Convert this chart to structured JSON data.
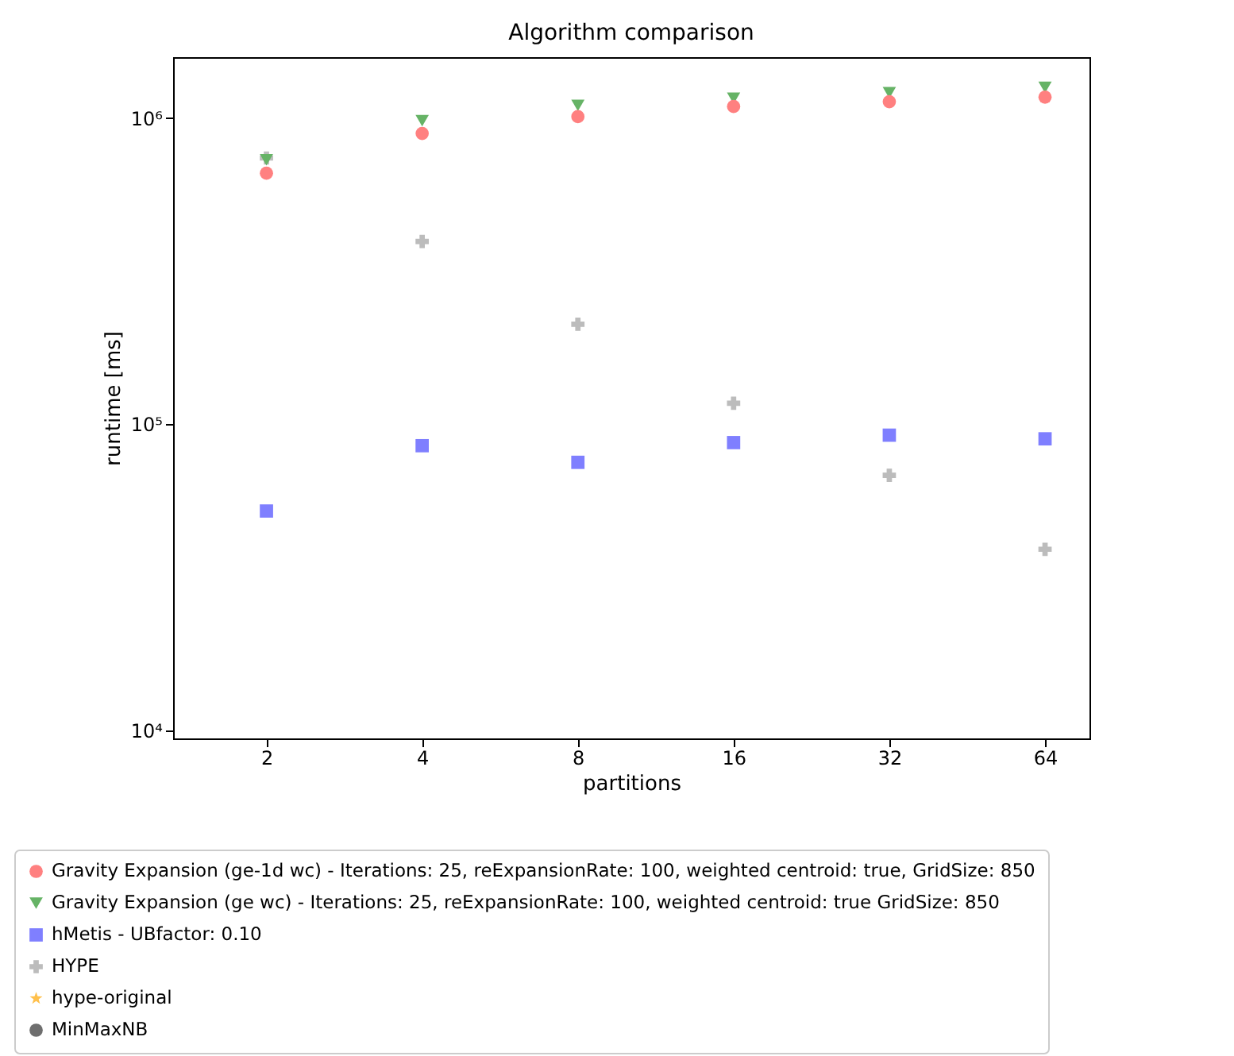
{
  "chart_data": {
    "type": "scatter",
    "title": "Algorithm comparison",
    "xlabel": "partitions",
    "ylabel": "runtime [ms]",
    "x": [
      2,
      4,
      8,
      16,
      32,
      64
    ],
    "series": [
      {
        "name": "Gravity Expansion (ge-1d wc) - Iterations: 25, reExpansionRate: 100, weighted centroid: true, GridSize: 850",
        "color": "#ff8080",
        "marker": "circle",
        "values": [
          660000,
          890000,
          1010000,
          1090000,
          1130000,
          1170000
        ]
      },
      {
        "name": "Gravity Expansion (ge wc) - Iterations: 25, reExpansionRate: 100, weighted centroid: true GridSize: 850",
        "color": "#66b366",
        "marker": "triangle",
        "values": [
          730000,
          980000,
          1100000,
          1160000,
          1210000,
          1260000
        ]
      },
      {
        "name": "hMetis - UBfactor:   0.10",
        "color": "#7f7fff",
        "marker": "square",
        "values": [
          52000,
          85000,
          75000,
          87000,
          92000,
          89500
        ]
      },
      {
        "name": "HYPE",
        "color": "#bcbcbc",
        "marker": "cross",
        "values": [
          740000,
          395000,
          212000,
          117000,
          68000,
          39000
        ]
      },
      {
        "name": "hype-original",
        "color": "#ffc04c",
        "marker": "star",
        "values": [
          null,
          null,
          null,
          null,
          null,
          null
        ]
      },
      {
        "name": "MinMaxNB",
        "color": "#6e6e6e",
        "marker": "circle",
        "values": [
          null,
          null,
          null,
          null,
          null,
          null
        ]
      }
    ],
    "log": "xy",
    "xlim": [
      1.32,
      78
    ],
    "xticks": [
      2,
      4,
      8,
      16,
      32,
      64
    ],
    "ylim": [
      9400,
      1580000
    ],
    "yticks": [
      {
        "value": 10000,
        "label": "10⁴"
      },
      {
        "value": 100000,
        "label": "10⁵"
      },
      {
        "value": 1000000,
        "label": "10⁶"
      }
    ],
    "legend": "bottom",
    "grid": false
  }
}
